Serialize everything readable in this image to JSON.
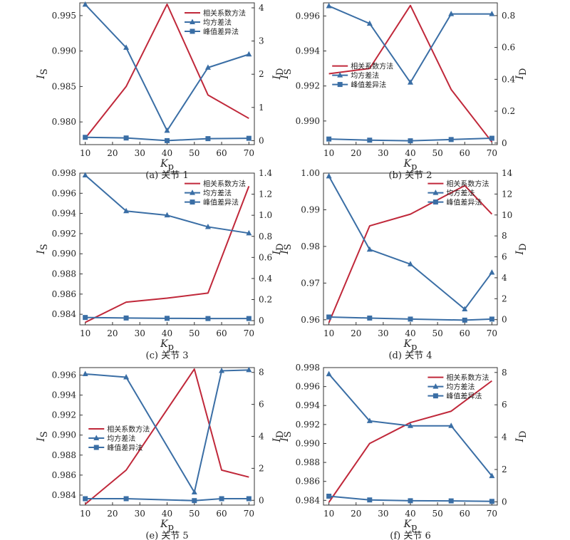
{
  "chart_data": [
    {
      "type": "line",
      "caption": "(a) 关节 1",
      "x": [
        10,
        25,
        40,
        55,
        70
      ],
      "xticks": [
        10,
        20,
        30,
        40,
        50,
        60,
        70
      ],
      "xlim": [
        8,
        72
      ],
      "xlabel": "K",
      "xlabel_sub": "p",
      "ylabel_left": "I",
      "ylabel_left_sub": "S",
      "ylabel_right": "I",
      "ylabel_right_sub": "D",
      "ylim_left": [
        0.9768,
        0.9968
      ],
      "yticks_left": [
        "0.980",
        "0.985",
        "0.990",
        "0.995"
      ],
      "ylim_right": [
        -0.12,
        4.15
      ],
      "yticks_right": [
        "0",
        "1",
        "2",
        "3",
        "4"
      ],
      "series": [
        {
          "name": "相关系数方法",
          "axis": "left",
          "color": "#c0283a",
          "marker": "none",
          "values": [
            0.9777,
            0.985,
            0.9966,
            0.9838,
            0.9805
          ]
        },
        {
          "name": "均方差法",
          "axis": "right",
          "color": "#3a6ea5",
          "marker": "triangle",
          "values": [
            4.1,
            2.8,
            0.3,
            2.2,
            2.6
          ]
        },
        {
          "name": "峰值差异法",
          "axis": "right",
          "color": "#3a6ea5",
          "marker": "square",
          "values": [
            0.1,
            0.08,
            0.0,
            0.06,
            0.07
          ]
        }
      ],
      "legend": {
        "position": "top-right"
      }
    },
    {
      "type": "line",
      "caption": "(b) 关节 2",
      "x": [
        10,
        25,
        40,
        55,
        70
      ],
      "xticks": [
        10,
        20,
        30,
        40,
        50,
        60,
        70
      ],
      "xlim": [
        8,
        72
      ],
      "xlabel": "K",
      "xlabel_sub": "p",
      "ylabel_left": "I",
      "ylabel_left_sub": "S",
      "ylabel_right": "I",
      "ylabel_right_sub": "D",
      "ylim_left": [
        0.98865,
        0.99675
      ],
      "yticks_left": [
        "0.990",
        "0.992",
        "0.994",
        "0.996"
      ],
      "ylim_right": [
        -0.01,
        0.88
      ],
      "yticks_right": [
        "0",
        "0.2",
        "0.4",
        "0.6",
        "0.8"
      ],
      "series": [
        {
          "name": "相关系数方法",
          "axis": "left",
          "color": "#c0283a",
          "marker": "none",
          "values": [
            0.9927,
            0.993,
            0.9966,
            0.9918,
            0.9888
          ]
        },
        {
          "name": "均方差法",
          "axis": "right",
          "color": "#3a6ea5",
          "marker": "triangle",
          "values": [
            0.86,
            0.75,
            0.38,
            0.81,
            0.81
          ]
        },
        {
          "name": "峰值差异法",
          "axis": "right",
          "color": "#3a6ea5",
          "marker": "square",
          "values": [
            0.025,
            0.018,
            0.014,
            0.022,
            0.03
          ]
        }
      ],
      "legend": {
        "position": "center-left"
      }
    },
    {
      "type": "line",
      "caption": "(c) 关节 3",
      "x": [
        10,
        25,
        40,
        55,
        70
      ],
      "xticks": [
        10,
        20,
        30,
        40,
        50,
        60,
        70
      ],
      "xlim": [
        8,
        72
      ],
      "xlabel": "K",
      "xlabel_sub": "p",
      "ylabel_left": "I",
      "ylabel_left_sub": "S",
      "ylabel_right": "I",
      "ylabel_right_sub": "D",
      "ylim_left": [
        0.98295,
        0.998
      ],
      "yticks_left": [
        "0.984",
        "0.986",
        "0.988",
        "0.990",
        "0.992",
        "0.994",
        "0.996",
        "0.998"
      ],
      "ylim_right": [
        -0.04,
        1.4
      ],
      "yticks_right": [
        "0",
        "0.2",
        "0.4",
        "0.6",
        "0.8",
        "1.0",
        "1.2",
        "1.4"
      ],
      "series": [
        {
          "name": "相关系数方法",
          "axis": "left",
          "color": "#c0283a",
          "marker": "none",
          "values": [
            0.9832,
            0.9852,
            0.9856,
            0.9861,
            0.9967
          ]
        },
        {
          "name": "均方差法",
          "axis": "right",
          "color": "#3a6ea5",
          "marker": "triangle",
          "values": [
            1.38,
            1.04,
            1.0,
            0.89,
            0.83
          ]
        },
        {
          "name": "峰值差异法",
          "axis": "right",
          "color": "#3a6ea5",
          "marker": "square",
          "values": [
            0.03,
            0.025,
            0.022,
            0.02,
            0.02
          ]
        }
      ],
      "legend": {
        "position": "top-right"
      }
    },
    {
      "type": "line",
      "caption": "(d) 关节 4",
      "x": [
        10,
        25,
        40,
        55,
        70
      ],
      "xticks": [
        10,
        20,
        30,
        40,
        50,
        60,
        70
      ],
      "xlim": [
        8,
        72
      ],
      "xlabel": "K",
      "xlabel_sub": "p",
      "ylabel_left": "I",
      "ylabel_left_sub": "S",
      "ylabel_right": "I",
      "ylabel_right_sub": "D",
      "ylim_left": [
        0.9586,
        1.0
      ],
      "yticks_left": [
        "0.96",
        "0.97",
        "0.98",
        "0.99",
        "1.00"
      ],
      "ylim_right": [
        -0.5,
        14.0
      ],
      "yticks_right": [
        "0",
        "2",
        "4",
        "6",
        "8",
        "10",
        "12",
        "14"
      ],
      "series": [
        {
          "name": "相关系数方法",
          "axis": "left",
          "color": "#c0283a",
          "marker": "none",
          "x": [
            10,
            25,
            40,
            60,
            70
          ],
          "values": [
            0.9592,
            0.9856,
            0.9888,
            0.9966,
            0.9888
          ]
        },
        {
          "name": "均方差法",
          "axis": "right",
          "color": "#3a6ea5",
          "marker": "triangle",
          "x": [
            10,
            25,
            40,
            60,
            70
          ],
          "values": [
            13.7,
            6.7,
            5.3,
            1.0,
            4.5
          ]
        },
        {
          "name": "峰值差异法",
          "axis": "right",
          "color": "#3a6ea5",
          "marker": "square",
          "x": [
            10,
            25,
            40,
            60,
            70
          ],
          "values": [
            0.25,
            0.15,
            0.05,
            -0.05,
            0.05
          ]
        }
      ],
      "legend": {
        "position": "top-right"
      }
    },
    {
      "type": "line",
      "caption": "(e) 关节 5",
      "x": [
        10,
        25,
        50,
        60,
        70
      ],
      "xticks": [
        10,
        20,
        30,
        40,
        50,
        60,
        70
      ],
      "xlim": [
        8,
        72
      ],
      "xlabel": "K",
      "xlabel_sub": "p",
      "ylabel_left": "I",
      "ylabel_left_sub": "S",
      "ylabel_right": "I",
      "ylabel_right_sub": "D",
      "ylim_left": [
        0.983,
        0.99675
      ],
      "yticks_left": [
        "0.984",
        "0.986",
        "0.988",
        "0.990",
        "0.992",
        "0.994",
        "0.996"
      ],
      "ylim_right": [
        -0.3,
        8.3
      ],
      "yticks_right": [
        "0",
        "2",
        "4",
        "6",
        "8"
      ],
      "series": [
        {
          "name": "相关系数方法",
          "axis": "left",
          "color": "#c0283a",
          "marker": "none",
          "values": [
            0.9831,
            0.9865,
            0.9966,
            0.9865,
            0.9858
          ]
        },
        {
          "name": "均方差法",
          "axis": "right",
          "color": "#3a6ea5",
          "marker": "triangle",
          "values": [
            7.9,
            7.7,
            0.5,
            8.1,
            8.15
          ]
        },
        {
          "name": "峰值差异法",
          "axis": "right",
          "color": "#3a6ea5",
          "marker": "square",
          "values": [
            0.1,
            0.1,
            -0.02,
            0.1,
            0.1
          ]
        }
      ],
      "legend": {
        "position": "center-left"
      }
    },
    {
      "type": "line",
      "caption": "(f) 关节 6",
      "x": [
        10,
        25,
        40,
        55,
        70
      ],
      "xticks": [
        10,
        20,
        30,
        40,
        50,
        60,
        70
      ],
      "xlim": [
        8,
        72
      ],
      "xlabel": "K",
      "xlabel_sub": "p",
      "ylabel_left": "I",
      "ylabel_left_sub": "S",
      "ylabel_right": "I",
      "ylabel_right_sub": "D",
      "ylim_left": [
        0.9835,
        0.998
      ],
      "yticks_left": [
        "0.984",
        "0.986",
        "0.988",
        "0.990",
        "0.992",
        "0.994",
        "0.996",
        "0.998"
      ],
      "ylim_right": [
        -0.2,
        8.3
      ],
      "yticks_right": [
        "0",
        "2",
        "4",
        "6",
        "8"
      ],
      "series": [
        {
          "name": "相关系数方法",
          "axis": "left",
          "color": "#c0283a",
          "marker": "none",
          "values": [
            0.9838,
            0.99,
            0.9922,
            0.9934,
            0.9966
          ]
        },
        {
          "name": "均方差法",
          "axis": "right",
          "color": "#3a6ea5",
          "marker": "triangle",
          "values": [
            7.9,
            5.0,
            4.7,
            4.7,
            1.6
          ]
        },
        {
          "name": "峰值差异法",
          "axis": "right",
          "color": "#3a6ea5",
          "marker": "square",
          "values": [
            0.35,
            0.12,
            0.07,
            0.06,
            0.03
          ]
        }
      ],
      "legend": {
        "position": "top-right"
      }
    }
  ]
}
